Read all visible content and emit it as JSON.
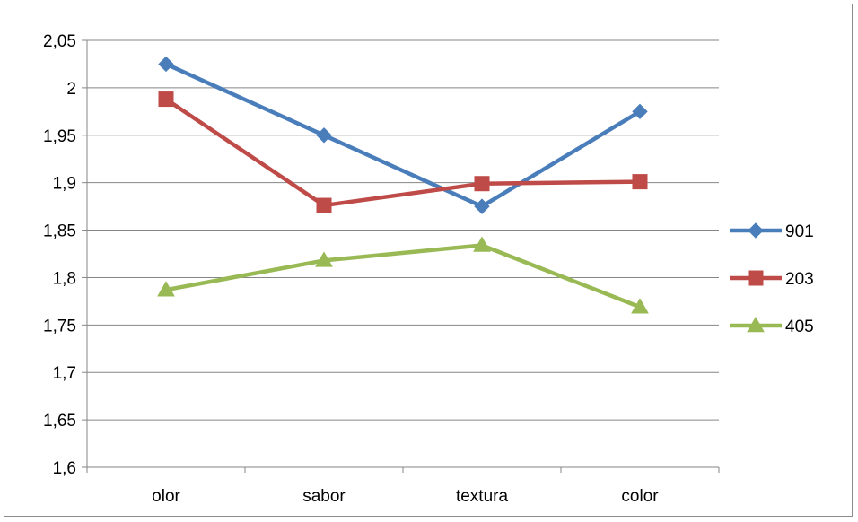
{
  "chart_data": {
    "type": "line",
    "title": "",
    "xlabel": "",
    "ylabel": "",
    "categories": [
      "olor",
      "sabor",
      "textura",
      "color"
    ],
    "ylim": [
      1.6,
      2.05
    ],
    "ytick_step": 0.05,
    "ytick_labels": [
      "1,6",
      "1,65",
      "1,7",
      "1,75",
      "1,8",
      "1,85",
      "1,9",
      "1,95",
      "2",
      "2,05"
    ],
    "grid": true,
    "legend_position": "right",
    "series": [
      {
        "name": "901",
        "values": [
          2.025,
          1.95,
          1.875,
          1.975
        ],
        "color": "#4a7ebb",
        "marker": "diamond"
      },
      {
        "name": "203",
        "values": [
          1.988,
          1.876,
          1.899,
          1.901
        ],
        "color": "#be4b48",
        "marker": "square"
      },
      {
        "name": "405",
        "values": [
          1.787,
          1.818,
          1.834,
          1.769
        ],
        "color": "#98b954",
        "marker": "triangle"
      }
    ]
  }
}
